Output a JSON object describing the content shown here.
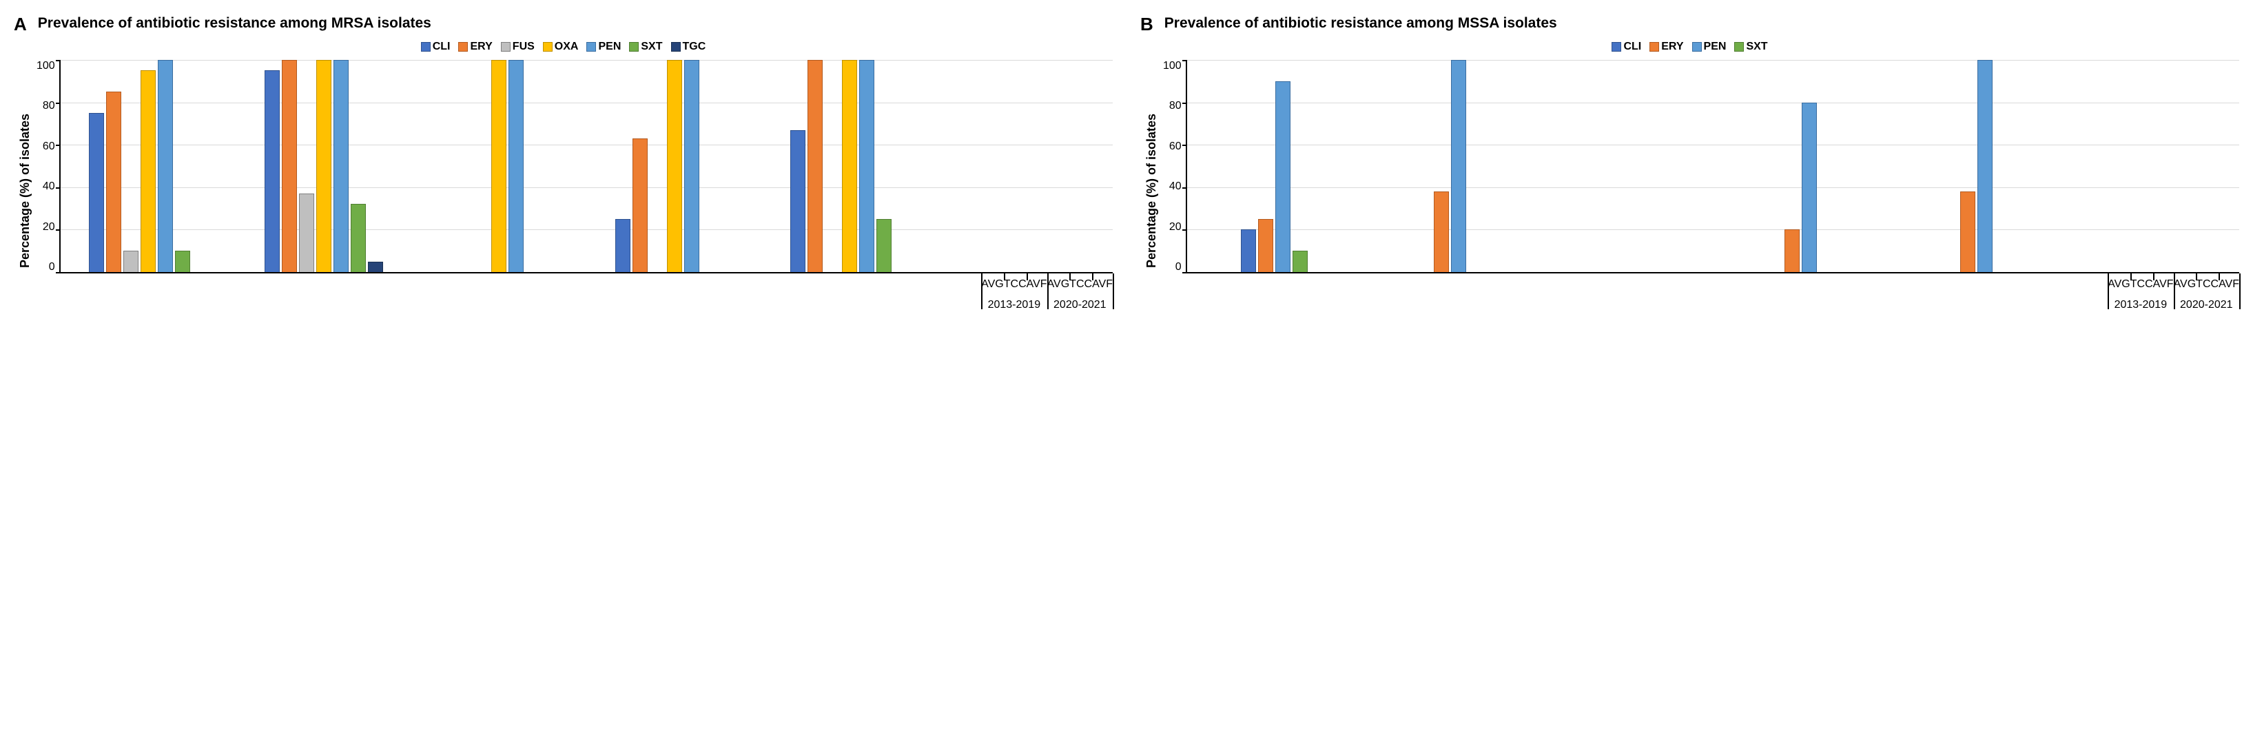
{
  "panels": [
    {
      "letter": "A",
      "title": "Prevalence of antibiotic resistance among MRSA isolates",
      "ylabel": "Percentage (%) of isolates",
      "ylim": [
        0,
        100
      ],
      "ytick_step": 20,
      "grid_color": "#d9d9d9",
      "background_color": "#ffffff",
      "label_fontsize": 18,
      "title_fontsize": 21,
      "series": [
        {
          "key": "CLI",
          "fill": "#4472c4",
          "border": "#2f528f"
        },
        {
          "key": "ERY",
          "fill": "#ed7d31",
          "border": "#b35a1f"
        },
        {
          "key": "FUS",
          "fill": "#bfbfbf",
          "border": "#7f7f7f"
        },
        {
          "key": "OXA",
          "fill": "#ffc000",
          "border": "#bf9000"
        },
        {
          "key": "PEN",
          "fill": "#5b9bd5",
          "border": "#3a6da0"
        },
        {
          "key": "SXT",
          "fill": "#70ad47",
          "border": "#507e32"
        },
        {
          "key": "TGC",
          "fill": "#264478",
          "border": "#1a2f52"
        }
      ],
      "periods": [
        {
          "label": "2013-2019",
          "groups": [
            {
              "label": "AVG",
              "values": {
                "CLI": 75,
                "ERY": 85,
                "FUS": 10,
                "OXA": 95,
                "PEN": 100,
                "SXT": 10,
                "TGC": 0
              }
            },
            {
              "label": "TCC",
              "values": {
                "CLI": 95,
                "ERY": 100,
                "FUS": 37,
                "OXA": 100,
                "PEN": 100,
                "SXT": 32,
                "TGC": 5
              }
            },
            {
              "label": "AVF",
              "values": {
                "CLI": 0,
                "ERY": 0,
                "FUS": 0,
                "OXA": 100,
                "PEN": 100,
                "SXT": 0,
                "TGC": 0
              }
            }
          ]
        },
        {
          "label": "2020-2021",
          "groups": [
            {
              "label": "AVG",
              "values": {
                "CLI": 25,
                "ERY": 63,
                "FUS": 0,
                "OXA": 100,
                "PEN": 100,
                "SXT": 0,
                "TGC": 0
              }
            },
            {
              "label": "TCC",
              "values": {
                "CLI": 67,
                "ERY": 100,
                "FUS": 0,
                "OXA": 100,
                "PEN": 100,
                "SXT": 25,
                "TGC": 0
              }
            },
            {
              "label": "AVF",
              "values": {
                "CLI": 0,
                "ERY": 0,
                "FUS": 0,
                "OXA": 0,
                "PEN": 0,
                "SXT": 0,
                "TGC": 0
              }
            }
          ]
        }
      ]
    },
    {
      "letter": "B",
      "title": "Prevalence of antibiotic resistance among MSSA isolates",
      "ylabel": "Percentage (%) of isolates",
      "ylim": [
        0,
        100
      ],
      "ytick_step": 20,
      "grid_color": "#d9d9d9",
      "background_color": "#ffffff",
      "label_fontsize": 18,
      "title_fontsize": 21,
      "series": [
        {
          "key": "CLI",
          "fill": "#4472c4",
          "border": "#2f528f"
        },
        {
          "key": "ERY",
          "fill": "#ed7d31",
          "border": "#b35a1f"
        },
        {
          "key": "PEN",
          "fill": "#5b9bd5",
          "border": "#3a6da0"
        },
        {
          "key": "SXT",
          "fill": "#70ad47",
          "border": "#507e32"
        }
      ],
      "periods": [
        {
          "label": "2013-2019",
          "groups": [
            {
              "label": "AVG",
              "values": {
                "CLI": 20,
                "ERY": 25,
                "PEN": 90,
                "SXT": 10
              }
            },
            {
              "label": "TCC",
              "values": {
                "CLI": 0,
                "ERY": 38,
                "PEN": 100,
                "SXT": 0
              }
            },
            {
              "label": "AVF",
              "values": {
                "CLI": 0,
                "ERY": 0,
                "PEN": 0,
                "SXT": 0
              }
            }
          ]
        },
        {
          "label": "2020-2021",
          "groups": [
            {
              "label": "AVG",
              "values": {
                "CLI": 0,
                "ERY": 20,
                "PEN": 80,
                "SXT": 0
              }
            },
            {
              "label": "TCC",
              "values": {
                "CLI": 0,
                "ERY": 38,
                "PEN": 100,
                "SXT": 0
              }
            },
            {
              "label": "AVF",
              "values": {
                "CLI": 0,
                "ERY": 0,
                "PEN": 0,
                "SXT": 0
              }
            }
          ]
        }
      ]
    }
  ]
}
